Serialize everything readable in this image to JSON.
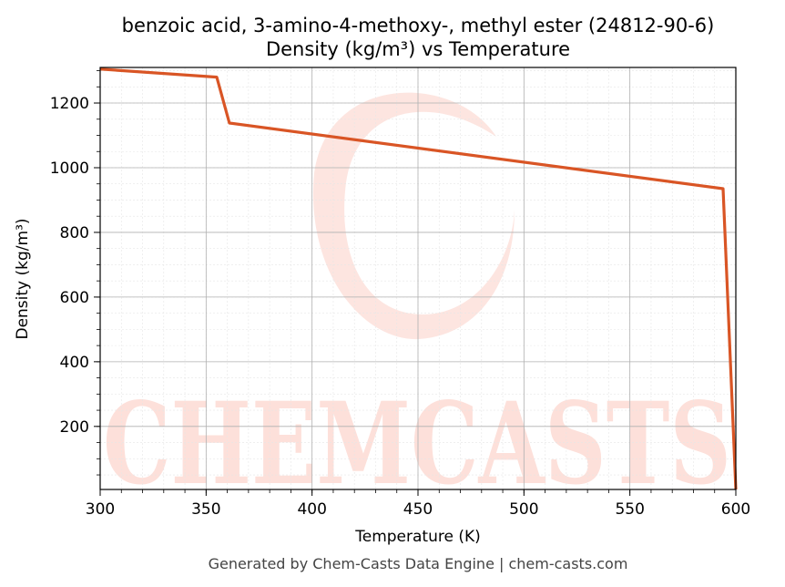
{
  "chart_data": {
    "type": "line",
    "title": "benzoic acid, 3-amino-4-methoxy-, methyl ester (24812-90-6)",
    "subtitle": "Density (kg/m³) vs Temperature",
    "xlabel": "Temperature (K)",
    "ylabel": "Density (kg/m³)",
    "xlim": [
      300,
      600
    ],
    "ylim": [
      5,
      1310
    ],
    "x_ticks": [
      300,
      350,
      400,
      450,
      500,
      550,
      600
    ],
    "y_ticks": [
      200,
      400,
      600,
      800,
      1000,
      1200
    ],
    "grid": true,
    "series": [
      {
        "color": "#d95525",
        "x": [
          300,
          355,
          361,
          594,
          600
        ],
        "y": [
          1305,
          1280,
          1138,
          935,
          5
        ]
      }
    ]
  },
  "watermark": {
    "text": "CHEMCASTS",
    "color": "#fde0da"
  },
  "footer": "Generated by Chem-Casts Data Engine | chem-casts.com"
}
